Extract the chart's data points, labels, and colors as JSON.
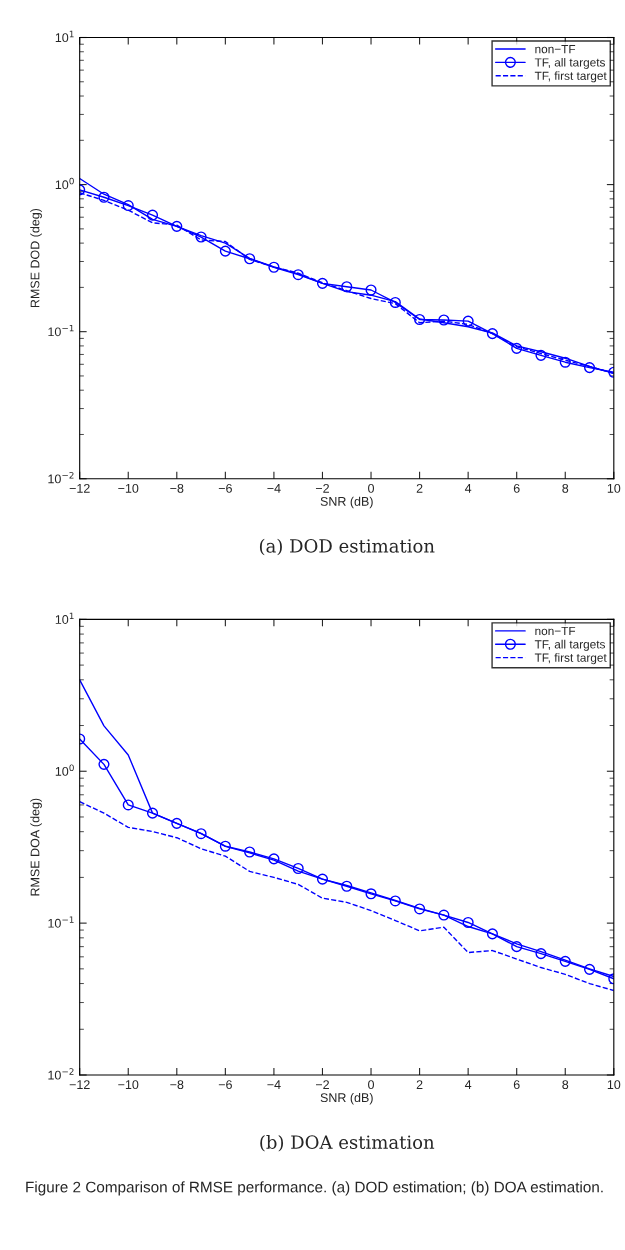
{
  "chart_data": [
    {
      "type": "line",
      "xlabel": "SNR (dB)",
      "ylabel": "RMSE DOD (deg)",
      "log": "y",
      "grid": false,
      "legend": "top right",
      "x": [
        -12,
        -11,
        -10,
        -9,
        -8,
        -7,
        -6,
        -5,
        -4,
        -3,
        -2,
        -1,
        0,
        1,
        2,
        3,
        4,
        5,
        6,
        7,
        8,
        9,
        10
      ],
      "xlim": [
        -12,
        10
      ],
      "xticks": [
        {
          "value": -12,
          "label": "−12"
        },
        {
          "value": -10,
          "label": "−10"
        },
        {
          "value": -8,
          "label": "−8"
        },
        {
          "value": -6,
          "label": "−6"
        },
        {
          "value": -4,
          "label": "−4"
        },
        {
          "value": -2,
          "label": "−2"
        },
        0,
        2,
        4,
        6,
        8,
        10
      ],
      "ylim": [
        0.01,
        10
      ],
      "yticks": [
        {
          "value": 0.01,
          "label": "10$^{−2}$"
        },
        {
          "value": 0.1,
          "label": "10$^{−1}$"
        },
        {
          "value": 1,
          "label": "10$^{0}$"
        },
        {
          "value": 10,
          "label": "10$^{1}$"
        }
      ],
      "annotations": [
        "(a) DOD estimation"
      ],
      "series": [
        {
          "name": "non−TF",
          "color": "#0000ff",
          "marker": "none",
          "line_style": "solid",
          "values": [
            1.1,
            0.86,
            0.73,
            0.58,
            0.52,
            0.45,
            0.4,
            0.315,
            0.276,
            0.247,
            0.213,
            0.187,
            0.177,
            0.16,
            0.122,
            0.115,
            0.108,
            0.098,
            0.08,
            0.073,
            0.066,
            0.058,
            0.052
          ]
        },
        {
          "name": "TF, all targets",
          "color": "#0000ff",
          "marker": "circle",
          "line_style": "solid",
          "values": [
            0.92,
            0.82,
            0.72,
            0.62,
            0.52,
            0.44,
            0.353,
            0.313,
            0.274,
            0.244,
            0.213,
            0.202,
            0.192,
            0.158,
            0.121,
            0.12,
            0.118,
            0.097,
            0.077,
            0.069,
            0.062,
            0.057,
            0.053
          ]
        },
        {
          "name": "TF, first target",
          "color": "#0000ff",
          "marker": "none",
          "line_style": "dashed",
          "values": [
            0.88,
            0.78,
            0.67,
            0.55,
            0.53,
            0.42,
            0.41,
            0.31,
            0.275,
            0.25,
            0.215,
            0.19,
            0.168,
            0.155,
            0.115,
            0.118,
            0.112,
            0.097,
            0.079,
            0.071,
            0.064,
            0.058,
            0.052
          ]
        }
      ]
    },
    {
      "type": "line",
      "xlabel": "SNR (dB)",
      "ylabel": "RMSE DOA (deg)",
      "log": "y",
      "grid": false,
      "legend": "top right",
      "x": [
        -12,
        -11,
        -10,
        -9,
        -8,
        -7,
        -6,
        -5,
        -4,
        -3,
        -2,
        -1,
        0,
        1,
        2,
        3,
        4,
        5,
        6,
        7,
        8,
        9,
        10
      ],
      "xlim": [
        -12,
        10
      ],
      "xticks": [
        {
          "value": -12,
          "label": "−12"
        },
        {
          "value": -10,
          "label": "−10"
        },
        {
          "value": -8,
          "label": "−8"
        },
        {
          "value": -6,
          "label": "−6"
        },
        {
          "value": -4,
          "label": "−4"
        },
        {
          "value": -2,
          "label": "−2"
        },
        0,
        2,
        4,
        6,
        8,
        10
      ],
      "ylim": [
        0.01,
        10
      ],
      "yticks": [
        {
          "value": 0.01,
          "label": "10$^{−2}$"
        },
        {
          "value": 0.1,
          "label": "10$^{−1}$"
        },
        {
          "value": 1,
          "label": "10$^{0}$"
        },
        {
          "value": 10,
          "label": "10$^{1}$"
        }
      ],
      "annotations": [
        "(b) DOA estimation",
        "Figure 2 Comparison of RMSE performance. (a) DOD estimation; (b) DOA estimation."
      ],
      "series": [
        {
          "name": "non−TF",
          "color": "#0000ff",
          "marker": "none",
          "line_style": "solid",
          "values": [
            4.0,
            1.99,
            1.28,
            0.53,
            0.454,
            0.39,
            0.32,
            0.29,
            0.26,
            0.22,
            0.195,
            0.177,
            0.158,
            0.141,
            0.125,
            0.113,
            0.095,
            0.085,
            0.073,
            0.065,
            0.057,
            0.05,
            0.0445
          ]
        },
        {
          "name": "TF, all targets",
          "color": "#0000ff",
          "marker": "circle",
          "line_style": "solid",
          "values": [
            1.63,
            1.11,
            0.6,
            0.53,
            0.454,
            0.388,
            0.321,
            0.294,
            0.265,
            0.229,
            0.195,
            0.175,
            0.156,
            0.14,
            0.124,
            0.113,
            0.101,
            0.085,
            0.07,
            0.063,
            0.056,
            0.0496,
            0.043
          ]
        },
        {
          "name": "TF, first target",
          "color": "#0000ff",
          "marker": "none",
          "line_style": "dashed",
          "values": [
            0.63,
            0.53,
            0.427,
            0.401,
            0.365,
            0.309,
            0.276,
            0.219,
            0.2,
            0.18,
            0.146,
            0.137,
            0.121,
            0.104,
            0.089,
            0.094,
            0.064,
            0.066,
            0.058,
            0.051,
            0.046,
            0.04,
            0.036
          ]
        }
      ]
    }
  ]
}
